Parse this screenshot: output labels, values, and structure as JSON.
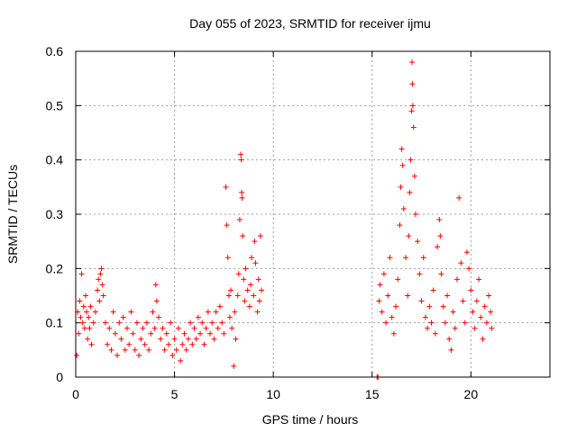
{
  "chart_data": {
    "type": "scatter",
    "title": "Day 055 of 2023, SRMTID for receiver ijmu",
    "xlabel": "GPS time / hours",
    "ylabel": "SRMTID / TECUs",
    "xlim": [
      0,
      24
    ],
    "ylim": [
      0,
      0.6
    ],
    "xticks": [
      0,
      5,
      10,
      15,
      20
    ],
    "xtick_labels": [
      "0",
      "5",
      "10",
      "15",
      "20"
    ],
    "yticks": [
      0,
      0.1,
      0.2,
      0.3,
      0.4,
      0.5,
      0.6
    ],
    "ytick_labels": [
      "0",
      "0.1",
      "0.2",
      "0.3",
      "0.4",
      "0.5",
      "0.6"
    ],
    "grid": true,
    "marker": "plus",
    "color": "#ff0000",
    "series": [
      {
        "name": "SRMTID",
        "points": [
          [
            0.05,
            0.04
          ],
          [
            0.1,
            0.12
          ],
          [
            0.15,
            0.08
          ],
          [
            0.2,
            0.14
          ],
          [
            0.25,
            0.11
          ],
          [
            0.3,
            0.19
          ],
          [
            0.35,
            0.1
          ],
          [
            0.4,
            0.13
          ],
          [
            0.45,
            0.09
          ],
          [
            0.5,
            0.15
          ],
          [
            0.55,
            0.12
          ],
          [
            0.6,
            0.07
          ],
          [
            0.65,
            0.11
          ],
          [
            0.7,
            0.09
          ],
          [
            0.75,
            0.13
          ],
          [
            0.8,
            0.06
          ],
          [
            0.9,
            0.1
          ],
          [
            1.0,
            0.12
          ],
          [
            1.1,
            0.16
          ],
          [
            1.15,
            0.18
          ],
          [
            1.2,
            0.14
          ],
          [
            1.25,
            0.19
          ],
          [
            1.3,
            0.2
          ],
          [
            1.35,
            0.17
          ],
          [
            1.4,
            0.15
          ],
          [
            1.5,
            0.1
          ],
          [
            1.6,
            0.06
          ],
          [
            1.7,
            0.09
          ],
          [
            1.8,
            0.05
          ],
          [
            1.9,
            0.12
          ],
          [
            2.0,
            0.08
          ],
          [
            2.1,
            0.04
          ],
          [
            2.2,
            0.1
          ],
          [
            2.3,
            0.07
          ],
          [
            2.4,
            0.11
          ],
          [
            2.5,
            0.05
          ],
          [
            2.6,
            0.09
          ],
          [
            2.7,
            0.06
          ],
          [
            2.8,
            0.12
          ],
          [
            2.9,
            0.08
          ],
          [
            3.0,
            0.05
          ],
          [
            3.1,
            0.1
          ],
          [
            3.2,
            0.04
          ],
          [
            3.3,
            0.07
          ],
          [
            3.4,
            0.09
          ],
          [
            3.5,
            0.06
          ],
          [
            3.6,
            0.1
          ],
          [
            3.7,
            0.05
          ],
          [
            3.8,
            0.08
          ],
          [
            3.9,
            0.12
          ],
          [
            4.0,
            0.09
          ],
          [
            4.05,
            0.17
          ],
          [
            4.1,
            0.14
          ],
          [
            4.2,
            0.11
          ],
          [
            4.3,
            0.07
          ],
          [
            4.4,
            0.09
          ],
          [
            4.5,
            0.05
          ],
          [
            4.6,
            0.08
          ],
          [
            4.7,
            0.06
          ],
          [
            4.8,
            0.1
          ],
          [
            4.9,
            0.04
          ],
          [
            5.0,
            0.07
          ],
          [
            5.1,
            0.05
          ],
          [
            5.2,
            0.09
          ],
          [
            5.3,
            0.03
          ],
          [
            5.4,
            0.06
          ],
          [
            5.5,
            0.08
          ],
          [
            5.6,
            0.05
          ],
          [
            5.7,
            0.07
          ],
          [
            5.8,
            0.1
          ],
          [
            5.9,
            0.06
          ],
          [
            6.0,
            0.09
          ],
          [
            6.1,
            0.07
          ],
          [
            6.2,
            0.11
          ],
          [
            6.3,
            0.08
          ],
          [
            6.4,
            0.1
          ],
          [
            6.5,
            0.06
          ],
          [
            6.6,
            0.09
          ],
          [
            6.7,
            0.12
          ],
          [
            6.8,
            0.08
          ],
          [
            6.9,
            0.1
          ],
          [
            7.0,
            0.07
          ],
          [
            7.1,
            0.12
          ],
          [
            7.2,
            0.09
          ],
          [
            7.3,
            0.13
          ],
          [
            7.4,
            0.1
          ],
          [
            7.5,
            0.08
          ],
          [
            7.6,
            0.35
          ],
          [
            7.65,
            0.28
          ],
          [
            7.7,
            0.22
          ],
          [
            7.75,
            0.15
          ],
          [
            7.8,
            0.11
          ],
          [
            7.85,
            0.16
          ],
          [
            7.9,
            0.09
          ],
          [
            8.0,
            0.02
          ],
          [
            8.05,
            0.12
          ],
          [
            8.1,
            0.07
          ],
          [
            8.2,
            0.15
          ],
          [
            8.25,
            0.19
          ],
          [
            8.3,
            0.29
          ],
          [
            8.35,
            0.41
          ],
          [
            8.38,
            0.4
          ],
          [
            8.4,
            0.34
          ],
          [
            8.42,
            0.33
          ],
          [
            8.45,
            0.26
          ],
          [
            8.5,
            0.18
          ],
          [
            8.55,
            0.14
          ],
          [
            8.6,
            0.2
          ],
          [
            8.7,
            0.16
          ],
          [
            8.8,
            0.13
          ],
          [
            8.85,
            0.17
          ],
          [
            8.9,
            0.22
          ],
          [
            9.0,
            0.15
          ],
          [
            9.05,
            0.25
          ],
          [
            9.1,
            0.21
          ],
          [
            9.2,
            0.12
          ],
          [
            9.25,
            0.18
          ],
          [
            9.3,
            0.14
          ],
          [
            9.35,
            0.26
          ],
          [
            9.4,
            0.16
          ],
          [
            15.25,
            0.0
          ],
          [
            15.3,
            0.0
          ],
          [
            15.35,
            0.14
          ],
          [
            15.4,
            0.17
          ],
          [
            15.5,
            0.12
          ],
          [
            15.6,
            0.19
          ],
          [
            15.7,
            0.1
          ],
          [
            15.8,
            0.15
          ],
          [
            15.9,
            0.22
          ],
          [
            16.0,
            0.11
          ],
          [
            16.1,
            0.08
          ],
          [
            16.2,
            0.13
          ],
          [
            16.3,
            0.18
          ],
          [
            16.4,
            0.28
          ],
          [
            16.45,
            0.35
          ],
          [
            16.5,
            0.42
          ],
          [
            16.55,
            0.39
          ],
          [
            16.6,
            0.31
          ],
          [
            16.7,
            0.22
          ],
          [
            16.8,
            0.15
          ],
          [
            16.85,
            0.26
          ],
          [
            16.9,
            0.34
          ],
          [
            16.95,
            0.4
          ],
          [
            17.0,
            0.49
          ],
          [
            17.02,
            0.58
          ],
          [
            17.04,
            0.54
          ],
          [
            17.06,
            0.5
          ],
          [
            17.1,
            0.46
          ],
          [
            17.15,
            0.37
          ],
          [
            17.2,
            0.3
          ],
          [
            17.3,
            0.25
          ],
          [
            17.4,
            0.19
          ],
          [
            17.5,
            0.14
          ],
          [
            17.6,
            0.22
          ],
          [
            17.7,
            0.11
          ],
          [
            17.8,
            0.09
          ],
          [
            17.9,
            0.13
          ],
          [
            18.0,
            0.1
          ],
          [
            18.1,
            0.16
          ],
          [
            18.2,
            0.08
          ],
          [
            18.3,
            0.24
          ],
          [
            18.4,
            0.29
          ],
          [
            18.45,
            0.26
          ],
          [
            18.5,
            0.19
          ],
          [
            18.6,
            0.13
          ],
          [
            18.7,
            0.1
          ],
          [
            18.8,
            0.15
          ],
          [
            18.9,
            0.07
          ],
          [
            19.0,
            0.05
          ],
          [
            19.1,
            0.12
          ],
          [
            19.2,
            0.09
          ],
          [
            19.3,
            0.18
          ],
          [
            19.4,
            0.33
          ],
          [
            19.5,
            0.21
          ],
          [
            19.6,
            0.14
          ],
          [
            19.7,
            0.1
          ],
          [
            19.8,
            0.23
          ],
          [
            19.9,
            0.2
          ],
          [
            20.0,
            0.16
          ],
          [
            20.1,
            0.12
          ],
          [
            20.2,
            0.09
          ],
          [
            20.3,
            0.14
          ],
          [
            20.4,
            0.18
          ],
          [
            20.5,
            0.11
          ],
          [
            20.6,
            0.07
          ],
          [
            20.7,
            0.13
          ],
          [
            20.8,
            0.1
          ],
          [
            20.9,
            0.15
          ],
          [
            21.0,
            0.12
          ],
          [
            21.05,
            0.09
          ]
        ]
      }
    ]
  }
}
